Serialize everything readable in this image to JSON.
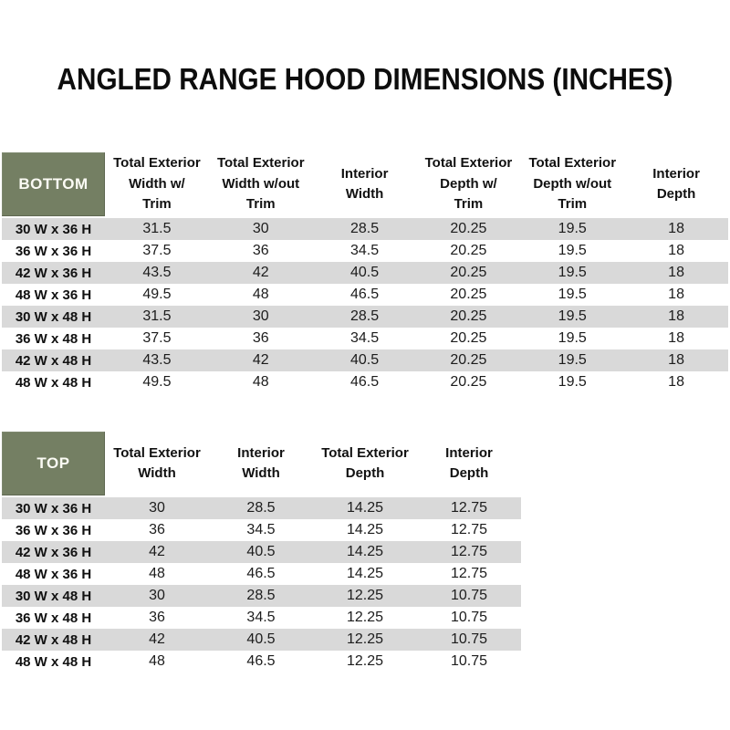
{
  "page": {
    "title": "ANGLED RANGE HOOD DIMENSIONS (INCHES)"
  },
  "colors": {
    "header_green": "#747f63",
    "row_stripe_gray": "#d9d9d9",
    "header_text_white": "#fbfbf4",
    "text_black": "#1a1a1a"
  },
  "tables": [
    {
      "id": "bottom",
      "corner_label": "BOTTOM",
      "columns": [
        "Total Exterior\nWidth w/\nTrim",
        "Total Exterior\nWidth w/out\nTrim",
        "Interior\nWidth",
        "Total Exterior\nDepth w/\nTrim",
        "Total Exterior\nDepth w/out\nTrim",
        "Interior\nDepth"
      ],
      "rows": [
        {
          "label": "30 W x 36 H",
          "values": [
            "31.5",
            "30",
            "28.5",
            "20.25",
            "19.5",
            "18"
          ]
        },
        {
          "label": "36 W x 36 H",
          "values": [
            "37.5",
            "36",
            "34.5",
            "20.25",
            "19.5",
            "18"
          ]
        },
        {
          "label": "42 W x 36 H",
          "values": [
            "43.5",
            "42",
            "40.5",
            "20.25",
            "19.5",
            "18"
          ]
        },
        {
          "label": "48 W x 36 H",
          "values": [
            "49.5",
            "48",
            "46.5",
            "20.25",
            "19.5",
            "18"
          ]
        },
        {
          "label": "30 W x 48 H",
          "values": [
            "31.5",
            "30",
            "28.5",
            "20.25",
            "19.5",
            "18"
          ]
        },
        {
          "label": "36 W x 48 H",
          "values": [
            "37.5",
            "36",
            "34.5",
            "20.25",
            "19.5",
            "18"
          ]
        },
        {
          "label": "42 W x 48 H",
          "values": [
            "43.5",
            "42",
            "40.5",
            "20.25",
            "19.5",
            "18"
          ]
        },
        {
          "label": "48 W x 48 H",
          "values": [
            "49.5",
            "48",
            "46.5",
            "20.25",
            "19.5",
            "18"
          ]
        }
      ]
    },
    {
      "id": "top",
      "corner_label": "TOP",
      "columns": [
        "Total Exterior\nWidth",
        "Interior\nWidth",
        "Total Exterior\nDepth",
        "Interior\nDepth"
      ],
      "rows": [
        {
          "label": "30 W x 36 H",
          "values": [
            "30",
            "28.5",
            "14.25",
            "12.75"
          ]
        },
        {
          "label": "36 W x 36 H",
          "values": [
            "36",
            "34.5",
            "14.25",
            "12.75"
          ]
        },
        {
          "label": "42 W x 36 H",
          "values": [
            "42",
            "40.5",
            "14.25",
            "12.75"
          ]
        },
        {
          "label": "48 W x 36 H",
          "values": [
            "48",
            "46.5",
            "14.25",
            "12.75"
          ]
        },
        {
          "label": "30 W x 48 H",
          "values": [
            "30",
            "28.5",
            "12.25",
            "10.75"
          ]
        },
        {
          "label": "36 W x 48 H",
          "values": [
            "36",
            "34.5",
            "12.25",
            "10.75"
          ]
        },
        {
          "label": "42 W x 48 H",
          "values": [
            "42",
            "40.5",
            "12.25",
            "10.75"
          ]
        },
        {
          "label": "48 W x 48 H",
          "values": [
            "48",
            "46.5",
            "12.25",
            "10.75"
          ]
        }
      ]
    }
  ]
}
